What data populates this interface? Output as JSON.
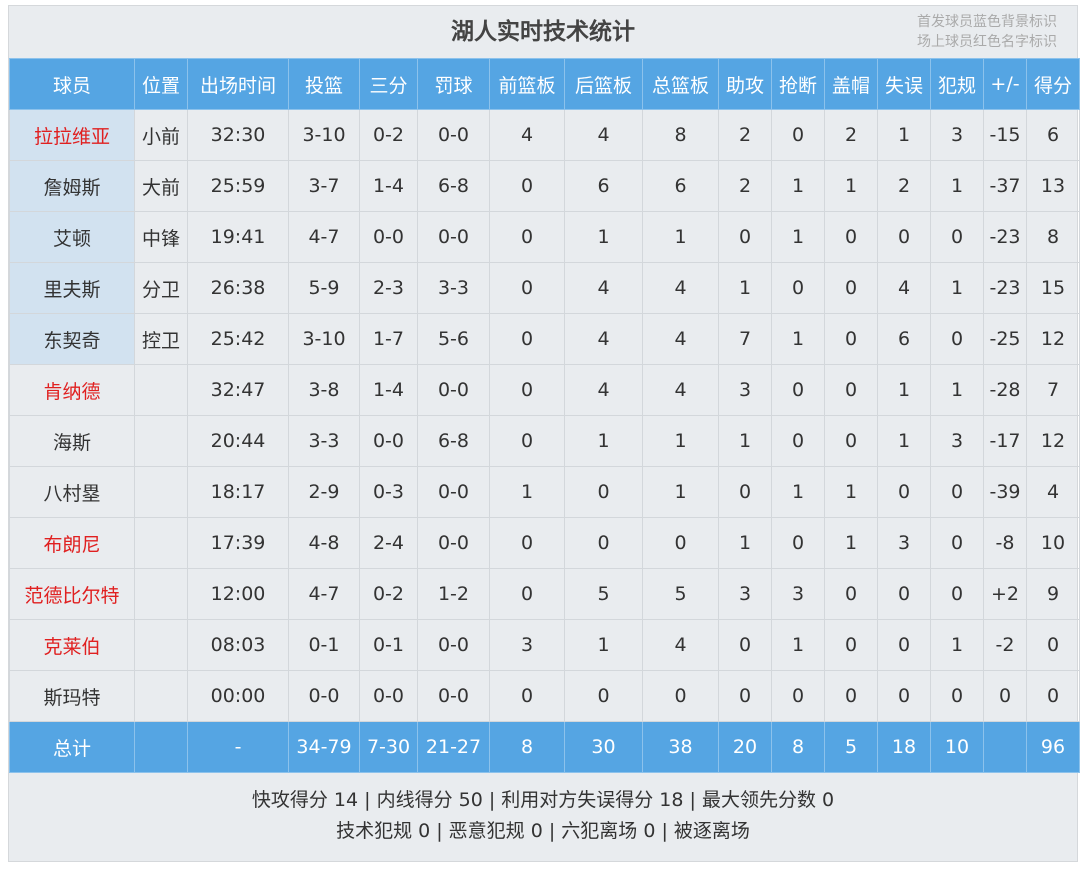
{
  "title": "湖人实时技术统计",
  "legend_notes": [
    "首发球员蓝色背景标识",
    "场上球员红色名字标识"
  ],
  "colors": {
    "header": "#55a5e3",
    "starter_bg": "#d2e2f0",
    "on_court_name": "#e02020"
  },
  "columns": [
    "球员",
    "位置",
    "出场时间",
    "投篮",
    "三分",
    "罚球",
    "前篮板",
    "后篮板",
    "总篮板",
    "助攻",
    "抢断",
    "盖帽",
    "失误",
    "犯规",
    "+/-",
    "得分"
  ],
  "players": [
    {
      "starter": true,
      "on_court": true,
      "cells": [
        "拉拉维亚",
        "小前",
        "32:30",
        "3-10",
        "0-2",
        "0-0",
        "4",
        "4",
        "8",
        "2",
        "0",
        "2",
        "1",
        "3",
        "-15",
        "6"
      ]
    },
    {
      "starter": true,
      "on_court": false,
      "cells": [
        "詹姆斯",
        "大前",
        "25:59",
        "3-7",
        "1-4",
        "6-8",
        "0",
        "6",
        "6",
        "2",
        "1",
        "1",
        "2",
        "1",
        "-37",
        "13"
      ]
    },
    {
      "starter": true,
      "on_court": false,
      "cells": [
        "艾顿",
        "中锋",
        "19:41",
        "4-7",
        "0-0",
        "0-0",
        "0",
        "1",
        "1",
        "0",
        "1",
        "0",
        "0",
        "0",
        "-23",
        "8"
      ]
    },
    {
      "starter": true,
      "on_court": false,
      "cells": [
        "里夫斯",
        "分卫",
        "26:38",
        "5-9",
        "2-3",
        "3-3",
        "0",
        "4",
        "4",
        "1",
        "0",
        "0",
        "4",
        "1",
        "-23",
        "15"
      ]
    },
    {
      "starter": true,
      "on_court": false,
      "cells": [
        "东契奇",
        "控卫",
        "25:42",
        "3-10",
        "1-7",
        "5-6",
        "0",
        "4",
        "4",
        "7",
        "1",
        "0",
        "6",
        "0",
        "-25",
        "12"
      ]
    },
    {
      "starter": false,
      "on_court": true,
      "cells": [
        "肯纳德",
        "",
        "32:47",
        "3-8",
        "1-4",
        "0-0",
        "0",
        "4",
        "4",
        "3",
        "0",
        "0",
        "1",
        "1",
        "-28",
        "7"
      ]
    },
    {
      "starter": false,
      "on_court": false,
      "cells": [
        "海斯",
        "",
        "20:44",
        "3-3",
        "0-0",
        "6-8",
        "0",
        "1",
        "1",
        "1",
        "0",
        "0",
        "1",
        "3",
        "-17",
        "12"
      ]
    },
    {
      "starter": false,
      "on_court": false,
      "cells": [
        "八村塁",
        "",
        "18:17",
        "2-9",
        "0-3",
        "0-0",
        "1",
        "0",
        "1",
        "0",
        "1",
        "1",
        "0",
        "0",
        "-39",
        "4"
      ]
    },
    {
      "starter": false,
      "on_court": true,
      "cells": [
        "布朗尼",
        "",
        "17:39",
        "4-8",
        "2-4",
        "0-0",
        "0",
        "0",
        "0",
        "1",
        "0",
        "1",
        "3",
        "0",
        "-8",
        "10"
      ]
    },
    {
      "starter": false,
      "on_court": true,
      "cells": [
        "范德比尔特",
        "",
        "12:00",
        "4-7",
        "0-2",
        "1-2",
        "0",
        "5",
        "5",
        "3",
        "3",
        "0",
        "0",
        "0",
        "+2",
        "9"
      ]
    },
    {
      "starter": false,
      "on_court": true,
      "cells": [
        "克莱伯",
        "",
        "08:03",
        "0-1",
        "0-1",
        "0-0",
        "3",
        "1",
        "4",
        "0",
        "1",
        "0",
        "0",
        "1",
        "-2",
        "0"
      ]
    },
    {
      "starter": false,
      "on_court": false,
      "cells": [
        "斯玛特",
        "",
        "00:00",
        "0-0",
        "0-0",
        "0-0",
        "0",
        "0",
        "0",
        "0",
        "0",
        "0",
        "0",
        "0",
        "0",
        "0"
      ]
    }
  ],
  "totals": [
    "总计",
    "",
    "-",
    "34-79",
    "7-30",
    "21-27",
    "8",
    "30",
    "38",
    "20",
    "8",
    "5",
    "18",
    "10",
    "",
    "96"
  ],
  "footer": [
    "快攻得分 14 | 内线得分 50 | 利用对方失误得分 18 | 最大领先分数 0",
    "技术犯规 0 | 恶意犯规 0 | 六犯离场 0 | 被逐离场"
  ]
}
